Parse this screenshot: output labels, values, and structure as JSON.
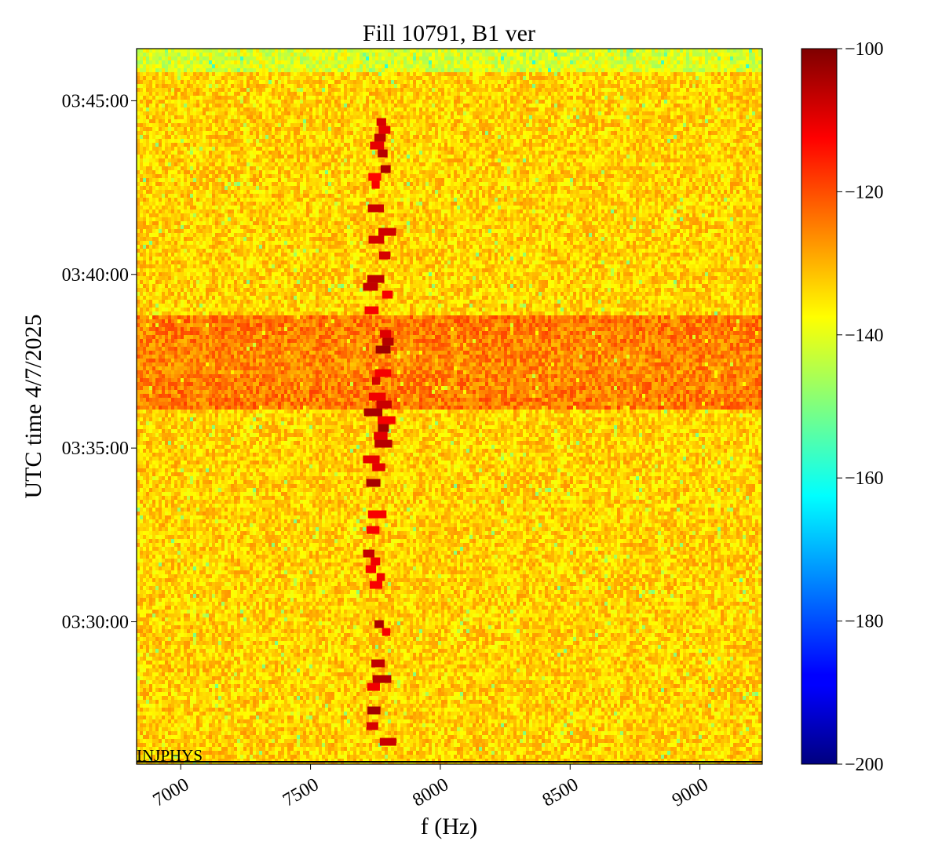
{
  "chart_data": {
    "type": "heatmap",
    "title": "Fill 10791, B1 ver",
    "xlabel": "f (Hz)",
    "ylabel": "UTC time 4/7/2025",
    "xlim": [
      6830,
      9240
    ],
    "ylim_minutes_after_0325": [
      0.9,
      21.5
    ],
    "x_ticks": [
      7000,
      7500,
      8000,
      8500,
      9000
    ],
    "x_tick_labels": [
      "7000",
      "7500",
      "8000",
      "8500",
      "9000"
    ],
    "y_ticks": [
      {
        "label": "03:30:00",
        "minutes": 5
      },
      {
        "label": "03:35:00",
        "minutes": 10
      },
      {
        "label": "03:40:00",
        "minutes": 15
      },
      {
        "label": "03:45:00",
        "minutes": 20
      }
    ],
    "colorbar": {
      "colormap": "jet",
      "min": -200,
      "max": -100,
      "ticks": [
        -100,
        -120,
        -140,
        -160,
        -180,
        -200
      ],
      "tick_labels": [
        "−100",
        "−120",
        "−140",
        "−160",
        "−180",
        "−200"
      ]
    },
    "regions": [
      {
        "description": "background before injection boundary",
        "level_db": -133
      },
      {
        "description": "after 03:43:50",
        "level_db": -141
      },
      {
        "description": "enhanced band 03:36–03:38",
        "level_db": -126
      }
    ],
    "signal_line": {
      "freq_hz_approx": 7760,
      "level_db": -108
    },
    "annotation": {
      "text": "INJPHYS"
    },
    "grid": false
  },
  "colors": {
    "background": "#ffffff",
    "axis": "#000000"
  }
}
